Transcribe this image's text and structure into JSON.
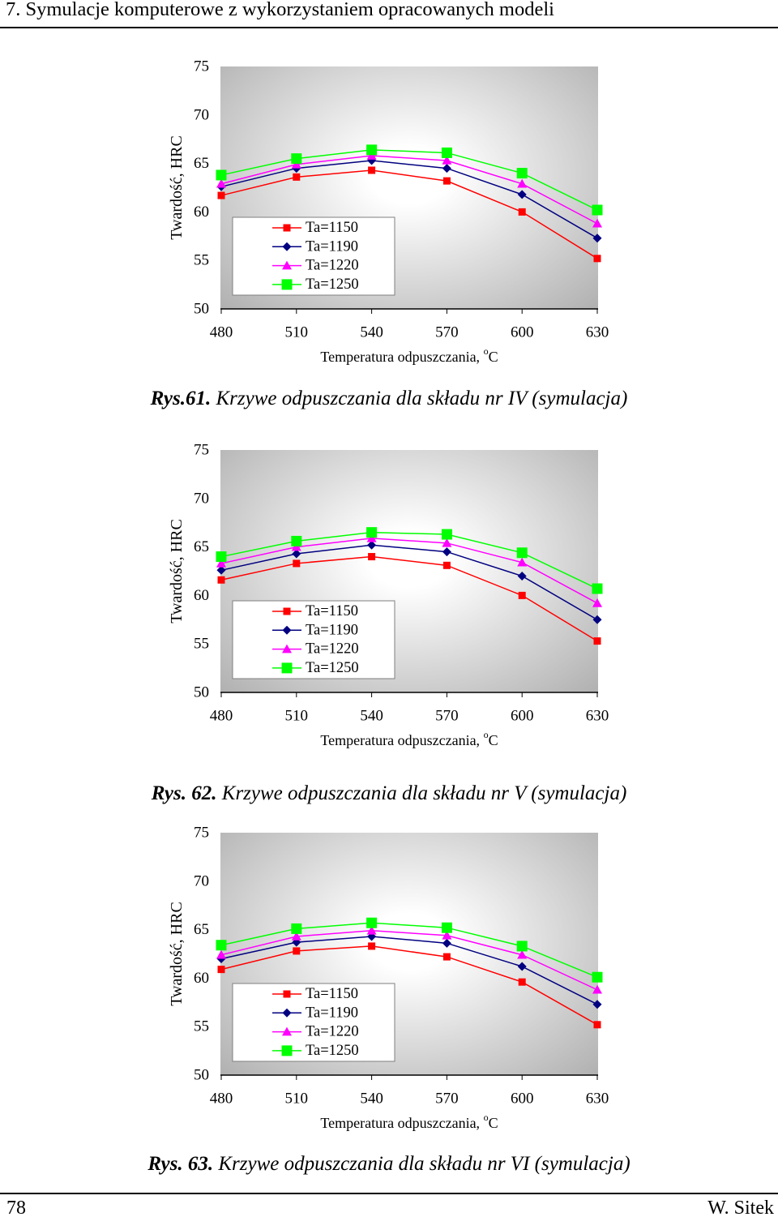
{
  "header": {
    "title": "7. Symulacje komputerowe z wykorzystaniem opracowanych modeli"
  },
  "figures": [
    {
      "label": "Rys.61.",
      "text": " Krzywe odpuszczania dla składu nr IV (symulacja)"
    },
    {
      "label": "Rys. 62.",
      "text": " Krzywe odpuszczania dla składu nr V (symulacja)"
    },
    {
      "label": "Rys. 63.",
      "text": " Krzywe odpuszczania dla składu nr VI (symulacja)"
    }
  ],
  "footer": {
    "page_number": "78",
    "author": "W. Sitek"
  },
  "chart_data": [
    {
      "type": "line",
      "x": [
        480,
        510,
        540,
        570,
        600,
        630
      ],
      "xlabel": "Temperatura odpuszczania, ",
      "xlabel_superscript": "o",
      "xlabel_unit": "C",
      "ylabel": "Twardość, HRC",
      "ylim": [
        50,
        75
      ],
      "y_ticks": [
        50,
        55,
        60,
        65,
        70,
        75
      ],
      "grid": false,
      "legend": "inside-bottom-left",
      "plot_gradient": {
        "center": "#ffffff",
        "edge": "#b0b0b0"
      },
      "series": [
        {
          "name": "Ta=1150",
          "color": "#ff0000",
          "marker": "square",
          "values": [
            61.7,
            63.6,
            64.3,
            63.2,
            60.0,
            55.2
          ]
        },
        {
          "name": "Ta=1190",
          "color": "#000080",
          "marker": "diamond",
          "values": [
            62.6,
            64.5,
            65.3,
            64.5,
            61.8,
            57.3
          ]
        },
        {
          "name": "Ta=1220",
          "color": "#ff00ff",
          "marker": "triangle",
          "values": [
            62.9,
            64.9,
            65.8,
            65.3,
            62.9,
            58.8
          ]
        },
        {
          "name": "Ta=1250",
          "color": "#00ff00",
          "marker": "square",
          "values": [
            63.8,
            65.5,
            66.4,
            66.1,
            64.0,
            60.2
          ]
        }
      ]
    },
    {
      "type": "line",
      "x": [
        480,
        510,
        540,
        570,
        600,
        630
      ],
      "xlabel": "Temperatura odpuszczania, ",
      "xlabel_superscript": "o",
      "xlabel_unit": "C",
      "ylabel": "Twardość, HRC",
      "ylim": [
        50,
        75
      ],
      "y_ticks": [
        50,
        55,
        60,
        65,
        70,
        75
      ],
      "grid": false,
      "legend": "inside-bottom-left",
      "plot_gradient": {
        "center": "#ffffff",
        "edge": "#b0b0b0"
      },
      "series": [
        {
          "name": "Ta=1150",
          "color": "#ff0000",
          "marker": "square",
          "values": [
            61.6,
            63.3,
            64.0,
            63.1,
            60.0,
            55.3
          ]
        },
        {
          "name": "Ta=1190",
          "color": "#000080",
          "marker": "diamond",
          "values": [
            62.6,
            64.3,
            65.2,
            64.5,
            62.0,
            57.5
          ]
        },
        {
          "name": "Ta=1220",
          "color": "#ff00ff",
          "marker": "triangle",
          "values": [
            63.3,
            65.0,
            65.9,
            65.4,
            63.4,
            59.2
          ]
        },
        {
          "name": "Ta=1250",
          "color": "#00ff00",
          "marker": "square",
          "values": [
            64.0,
            65.6,
            66.5,
            66.3,
            64.4,
            60.7
          ]
        }
      ]
    },
    {
      "type": "line",
      "x": [
        480,
        510,
        540,
        570,
        600,
        630
      ],
      "xlabel": "Temperatura odpuszczania, ",
      "xlabel_superscript": "o",
      "xlabel_unit": "C",
      "ylabel": "Twardość, HRC",
      "ylim": [
        50,
        75
      ],
      "y_ticks": [
        50,
        55,
        60,
        65,
        70,
        75
      ],
      "grid": false,
      "legend": "inside-bottom-left",
      "plot_gradient": {
        "center": "#ffffff",
        "edge": "#b0b0b0"
      },
      "series": [
        {
          "name": "Ta=1150",
          "color": "#ff0000",
          "marker": "square",
          "values": [
            60.9,
            62.8,
            63.3,
            62.2,
            59.6,
            55.2
          ]
        },
        {
          "name": "Ta=1190",
          "color": "#000080",
          "marker": "diamond",
          "values": [
            62.0,
            63.7,
            64.3,
            63.6,
            61.2,
            57.3
          ]
        },
        {
          "name": "Ta=1220",
          "color": "#ff00ff",
          "marker": "triangle",
          "values": [
            62.4,
            64.3,
            64.9,
            64.4,
            62.4,
            58.8
          ]
        },
        {
          "name": "Ta=1250",
          "color": "#00ff00",
          "marker": "square",
          "values": [
            63.4,
            65.1,
            65.7,
            65.2,
            63.3,
            60.1
          ]
        }
      ]
    }
  ]
}
